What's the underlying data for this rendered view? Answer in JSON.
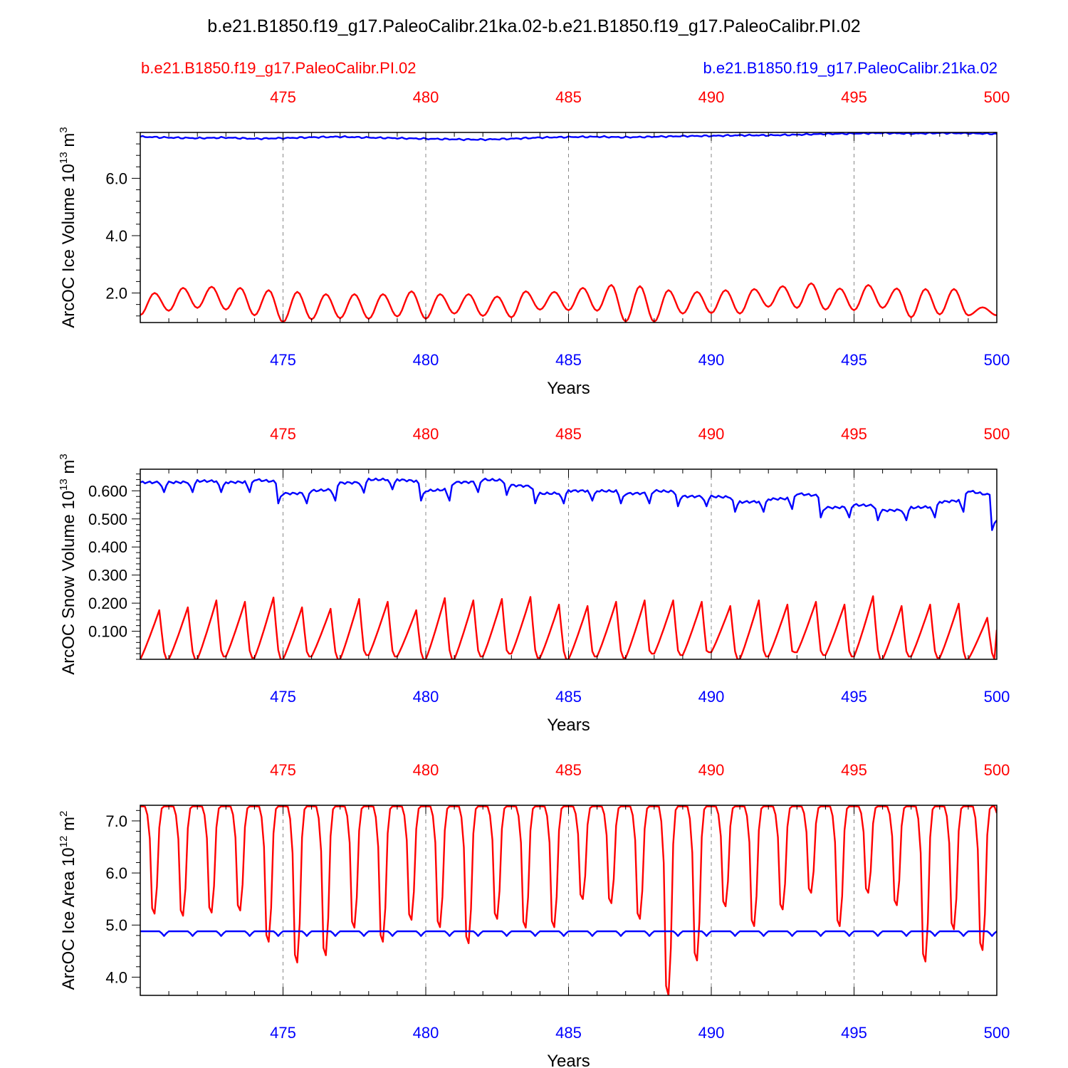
{
  "title": "b.e21.B1850.f19_g17.PaleoCalibr.21ka.02-b.e21.B1850.f19_g17.PaleoCalibr.PI.02",
  "legend": {
    "left": {
      "text": "b.e21.B1850.f19_g17.PaleoCalibr.PI.02",
      "color": "#ff0000"
    },
    "right": {
      "text": "b.e21.B1850.f19_g17.PaleoCalibr.21ka.02",
      "color": "#0000ff"
    }
  },
  "colors": {
    "pi": "#ff0000",
    "lgm": "#0000ff",
    "axis": "#000000",
    "grid": "#888888"
  },
  "chart_data": [
    {
      "type": "line",
      "title": "",
      "xlabel": "Years",
      "ylabel": "ArcOC Ice Volume 10",
      "ylabel_exp": "13",
      "ylabel_unit": "m",
      "ylabel_unit_exp": "3",
      "xlim": [
        470,
        500
      ],
      "ylim": [
        0.97,
        7.6
      ],
      "x_ticks": [
        475,
        480,
        485,
        490,
        495,
        500
      ],
      "x_tick_labels": [
        "475",
        "480",
        "485",
        "490",
        "495",
        "500"
      ],
      "y_ticks": [
        2.0,
        4.0,
        6.0
      ],
      "y_tick_labels": [
        "2.0",
        "4.0",
        "6.0"
      ],
      "y_minor_step": 0.4,
      "grid_x": true,
      "series": [
        {
          "key": "pi",
          "kind": "seasonal",
          "min": [
            1.23,
            1.38,
            1.48,
            1.42,
            1.22,
            0.98,
            1.08,
            1.12,
            1.1,
            1.18,
            1.1,
            1.28,
            1.2,
            1.15,
            1.42,
            1.4,
            1.38,
            1.0,
            0.99,
            1.28,
            1.3,
            1.28,
            1.52,
            1.48,
            1.42,
            1.4,
            1.48,
            1.15,
            1.25,
            1.22
          ],
          "max": [
            2.0,
            2.18,
            2.22,
            2.18,
            2.1,
            2.04,
            1.96,
            1.96,
            1.96,
            2.06,
            1.96,
            1.96,
            1.88,
            2.06,
            2.04,
            2.18,
            2.28,
            2.24,
            2.1,
            2.04,
            2.1,
            2.14,
            2.24,
            2.34,
            2.16,
            2.28,
            2.16,
            2.14,
            2.14,
            1.5
          ],
          "peak_phase": 0.5
        },
        {
          "key": "lgm",
          "kind": "trend",
          "knots": [
            [
              470,
              7.45
            ],
            [
              471,
              7.42
            ],
            [
              472,
              7.4
            ],
            [
              473,
              7.42
            ],
            [
              474,
              7.38
            ],
            [
              475,
              7.4
            ],
            [
              476,
              7.43
            ],
            [
              477,
              7.45
            ],
            [
              478,
              7.42
            ],
            [
              479,
              7.4
            ],
            [
              480,
              7.38
            ],
            [
              481,
              7.36
            ],
            [
              482,
              7.35
            ],
            [
              483,
              7.38
            ],
            [
              484,
              7.42
            ],
            [
              485,
              7.44
            ],
            [
              486,
              7.45
            ],
            [
              487,
              7.43
            ],
            [
              488,
              7.45
            ],
            [
              489,
              7.47
            ],
            [
              490,
              7.48
            ],
            [
              491,
              7.5
            ],
            [
              492,
              7.5
            ],
            [
              493,
              7.52
            ],
            [
              494,
              7.55
            ],
            [
              495,
              7.56
            ],
            [
              496,
              7.58
            ],
            [
              497,
              7.56
            ],
            [
              498,
              7.58
            ],
            [
              499,
              7.57
            ],
            [
              500,
              7.55
            ]
          ],
          "wiggle": 0.03
        }
      ]
    },
    {
      "type": "line",
      "title": "",
      "xlabel": "Years",
      "ylabel": "ArcOC Snow Volume 10",
      "ylabel_exp": "13",
      "ylabel_unit": "m",
      "ylabel_unit_exp": "3",
      "xlim": [
        470,
        500
      ],
      "ylim": [
        0.0,
        0.677
      ],
      "x_ticks": [
        475,
        480,
        485,
        490,
        495,
        500
      ],
      "x_tick_labels": [
        "475",
        "480",
        "485",
        "490",
        "495",
        "500"
      ],
      "y_ticks": [
        0.1,
        0.2,
        0.3,
        0.4,
        0.5,
        0.6
      ],
      "y_tick_labels": [
        "0.100",
        "0.200",
        "0.300",
        "0.400",
        "0.500",
        "0.600"
      ],
      "y_minor_step": 0.02,
      "grid_x": true,
      "series": [
        {
          "key": "pi",
          "kind": "sawtooth",
          "max": [
            0.175,
            0.185,
            0.21,
            0.205,
            0.22,
            0.185,
            0.18,
            0.215,
            0.205,
            0.175,
            0.218,
            0.21,
            0.215,
            0.222,
            0.195,
            0.19,
            0.205,
            0.21,
            0.21,
            0.205,
            0.19,
            0.21,
            0.195,
            0.205,
            0.195,
            0.225,
            0.19,
            0.195,
            0.198,
            0.148
          ],
          "min": [
            0.0,
            0.0,
            0.0,
            0.01,
            0.005,
            0.0,
            0.01,
            0.0,
            0.015,
            0.01,
            0.0,
            0.0,
            0.01,
            0.02,
            0.005,
            0.0,
            0.01,
            0.005,
            0.02,
            0.015,
            0.025,
            0.0,
            0.01,
            0.025,
            0.015,
            0.01,
            0.0,
            0.01,
            0.005,
            0.0
          ],
          "end": 0.105
        },
        {
          "key": "lgm",
          "kind": "stepped",
          "levels": [
            0.63,
            0.63,
            0.635,
            0.63,
            0.64,
            0.59,
            0.6,
            0.628,
            0.64,
            0.64,
            0.6,
            0.63,
            0.64,
            0.62,
            0.59,
            0.6,
            0.6,
            0.59,
            0.6,
            0.58,
            0.58,
            0.56,
            0.57,
            0.59,
            0.54,
            0.55,
            0.53,
            0.54,
            0.56,
            0.6,
            0.495
          ],
          "dip": 0.035
        }
      ]
    },
    {
      "type": "line",
      "title": "",
      "xlabel": "Years",
      "ylabel": "ArcOC Ice Area 10",
      "ylabel_exp": "12",
      "ylabel_unit": "m",
      "ylabel_unit_exp": "2",
      "xlim": [
        470,
        500
      ],
      "ylim": [
        3.65,
        7.3
      ],
      "x_ticks": [
        475,
        480,
        485,
        490,
        495,
        500
      ],
      "x_tick_labels": [
        "475",
        "480",
        "485",
        "490",
        "495",
        "500"
      ],
      "y_ticks": [
        4.0,
        5.0,
        6.0,
        7.0
      ],
      "y_tick_labels": [
        "4.0",
        "5.0",
        "6.0",
        "7.0"
      ],
      "y_minor_step": 0.2,
      "grid_x": true,
      "series": [
        {
          "key": "pi",
          "kind": "dip",
          "max": 7.28,
          "min": [
            5.22,
            5.18,
            5.24,
            5.28,
            4.68,
            4.28,
            4.42,
            4.95,
            4.68,
            5.1,
            4.96,
            4.65,
            5.12,
            4.95,
            4.96,
            5.5,
            5.42,
            5.12,
            3.65,
            4.32,
            5.36,
            4.98,
            5.3,
            5.62,
            4.98,
            5.62,
            5.38,
            4.3,
            4.92,
            4.52
          ],
          "end": 7.15
        },
        {
          "key": "lgm",
          "kind": "flat",
          "level": 4.88,
          "dip": 0.09
        }
      ]
    }
  ]
}
